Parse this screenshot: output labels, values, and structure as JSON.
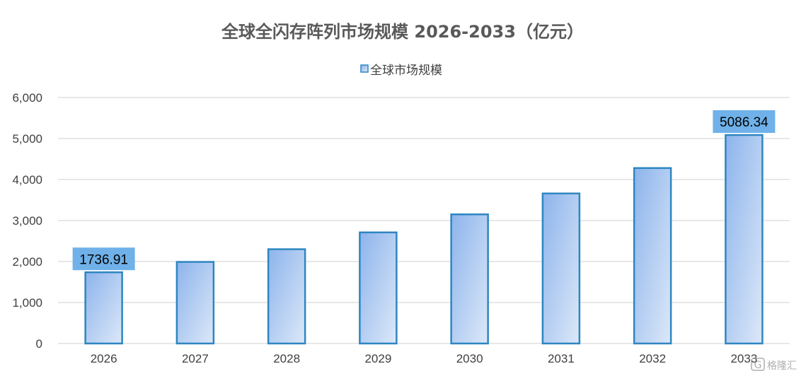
{
  "chart_data": {
    "type": "bar",
    "title": "全球全闪存阵列市场规模 2026-2033（亿元）",
    "xlabel": "",
    "ylabel": "",
    "categories": [
      "2026",
      "2027",
      "2028",
      "2029",
      "2030",
      "2031",
      "2032",
      "2033"
    ],
    "series": [
      {
        "name": "全球市场规模",
        "values": [
          1736.91,
          1990,
          2300,
          2710,
          3150,
          3660,
          4280,
          5086.34
        ]
      }
    ],
    "data_labels": [
      {
        "index": 0,
        "text": "1736.91"
      },
      {
        "index": 7,
        "text": "5086.34"
      }
    ],
    "ylim": [
      0,
      6000
    ],
    "yticks": [
      0,
      1000,
      2000,
      3000,
      4000,
      5000,
      6000
    ],
    "ytick_labels": [
      "0",
      "1,000",
      "2,000",
      "3,000",
      "4,000",
      "5,000",
      "6,000"
    ],
    "grid": true,
    "legend": "top-center",
    "colors": {
      "bar_top": "#8db4ec",
      "bar_bottom": "#dce8f8",
      "bar_border": "#2e86c1",
      "label_bg": "#6fb1e8",
      "grid": "#d9d9d9"
    }
  },
  "watermark": {
    "text": "格隆汇",
    "icon": "glh-logo-icon"
  }
}
